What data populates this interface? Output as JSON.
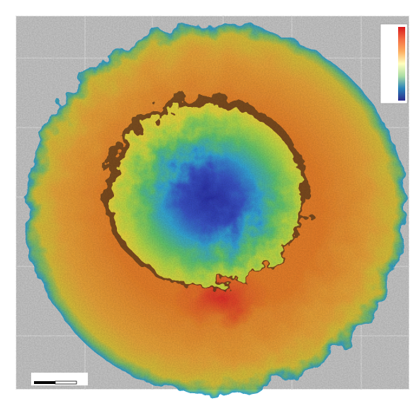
{
  "colorbar": {
    "colors": [
      "#d7191c",
      "#f46d43",
      "#fdae61",
      "#ffffbf",
      "#abdda4",
      "#2b83ba",
      "#2c2c8c"
    ]
  }
}
